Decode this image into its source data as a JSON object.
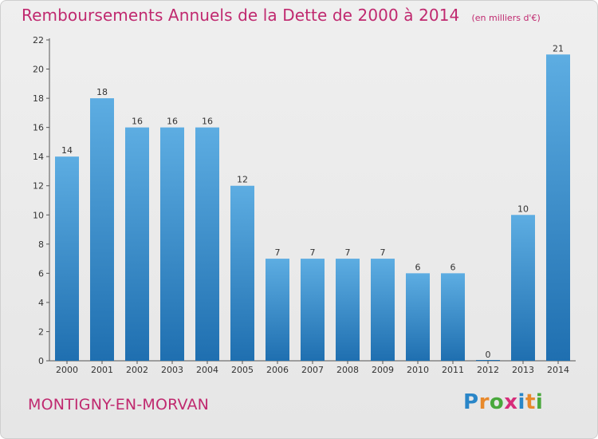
{
  "header": {
    "title": "Remboursements Annuels de la Dette de 2000 à 2014",
    "subtitle": "(en milliers d'€)"
  },
  "footer": {
    "location": "MONTIGNY-EN-MORVAN",
    "logo": "Proxiti"
  },
  "colors": {
    "accent": "#c0296f",
    "bar_light": "#5dade2",
    "bar_dark": "#1f6fb0"
  },
  "chart_data": {
    "type": "bar",
    "title": "Remboursements Annuels de la Dette de 2000 à 2014",
    "subtitle": "(en milliers d'€)",
    "xlabel": "",
    "ylabel": "",
    "categories": [
      "2000",
      "2001",
      "2002",
      "2003",
      "2004",
      "2005",
      "2006",
      "2007",
      "2008",
      "2009",
      "2010",
      "2011",
      "2012",
      "2013",
      "2014"
    ],
    "values": [
      14,
      18,
      16,
      16,
      16,
      12,
      7,
      7,
      7,
      7,
      6,
      6,
      0,
      10,
      21
    ],
    "ylim": [
      0,
      22
    ],
    "yticks": [
      0,
      2,
      4,
      6,
      8,
      10,
      12,
      14,
      16,
      18,
      20,
      22
    ],
    "grid": false,
    "legend": "none"
  }
}
